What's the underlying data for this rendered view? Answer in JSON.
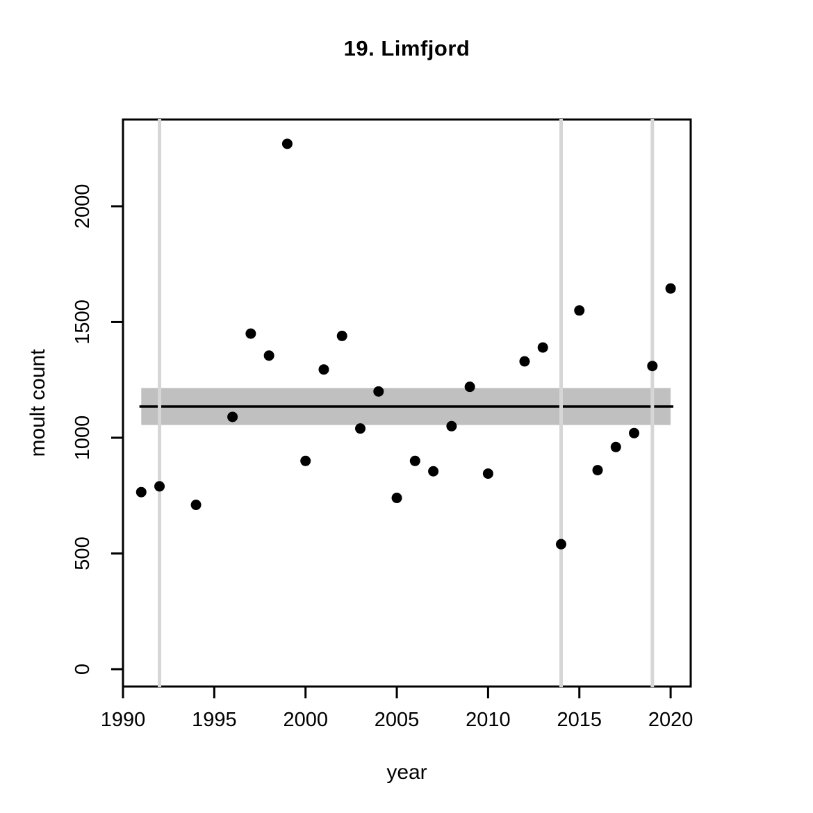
{
  "chart_data": {
    "type": "scatter",
    "title": "19. Limfjord",
    "xlabel": "year",
    "ylabel": "moult count",
    "xlim": [
      1990,
      2021.1
    ],
    "ylim": [
      -75,
      2375
    ],
    "x_ticks": [
      1990,
      1995,
      2000,
      2005,
      2010,
      2015,
      2020
    ],
    "y_ticks": [
      0,
      500,
      1000,
      1500,
      2000
    ],
    "grid": "off",
    "legend": "none",
    "point_color": "#000000",
    "points": [
      {
        "x": 1991,
        "y": 765
      },
      {
        "x": 1992,
        "y": 790
      },
      {
        "x": 1994,
        "y": 710
      },
      {
        "x": 1996,
        "y": 1090
      },
      {
        "x": 1997,
        "y": 1450
      },
      {
        "x": 1998,
        "y": 1355
      },
      {
        "x": 1999,
        "y": 2270
      },
      {
        "x": 2000,
        "y": 900
      },
      {
        "x": 2001,
        "y": 1295
      },
      {
        "x": 2002,
        "y": 1440
      },
      {
        "x": 2003,
        "y": 1040
      },
      {
        "x": 2004,
        "y": 1200
      },
      {
        "x": 2005,
        "y": 740
      },
      {
        "x": 2006,
        "y": 900
      },
      {
        "x": 2007,
        "y": 855
      },
      {
        "x": 2008,
        "y": 1050
      },
      {
        "x": 2009,
        "y": 1220
      },
      {
        "x": 2010,
        "y": 845
      },
      {
        "x": 2012,
        "y": 1330
      },
      {
        "x": 2013,
        "y": 1390
      },
      {
        "x": 2014,
        "y": 540
      },
      {
        "x": 2015,
        "y": 1550
      },
      {
        "x": 2016,
        "y": 860
      },
      {
        "x": 2017,
        "y": 960
      },
      {
        "x": 2018,
        "y": 1020
      },
      {
        "x": 2019,
        "y": 1310
      },
      {
        "x": 2020,
        "y": 1645
      }
    ],
    "vlines": {
      "x": [
        1992,
        2014,
        2019
      ],
      "color": "#d6d6d6"
    },
    "band": {
      "x0": 1991,
      "x1": 2020,
      "y0": 1055,
      "y1": 1215,
      "color": "#c0c0c0"
    },
    "hline": {
      "y": 1135,
      "x0": 1990.9,
      "x1": 2020.15,
      "color": "#000000"
    }
  }
}
